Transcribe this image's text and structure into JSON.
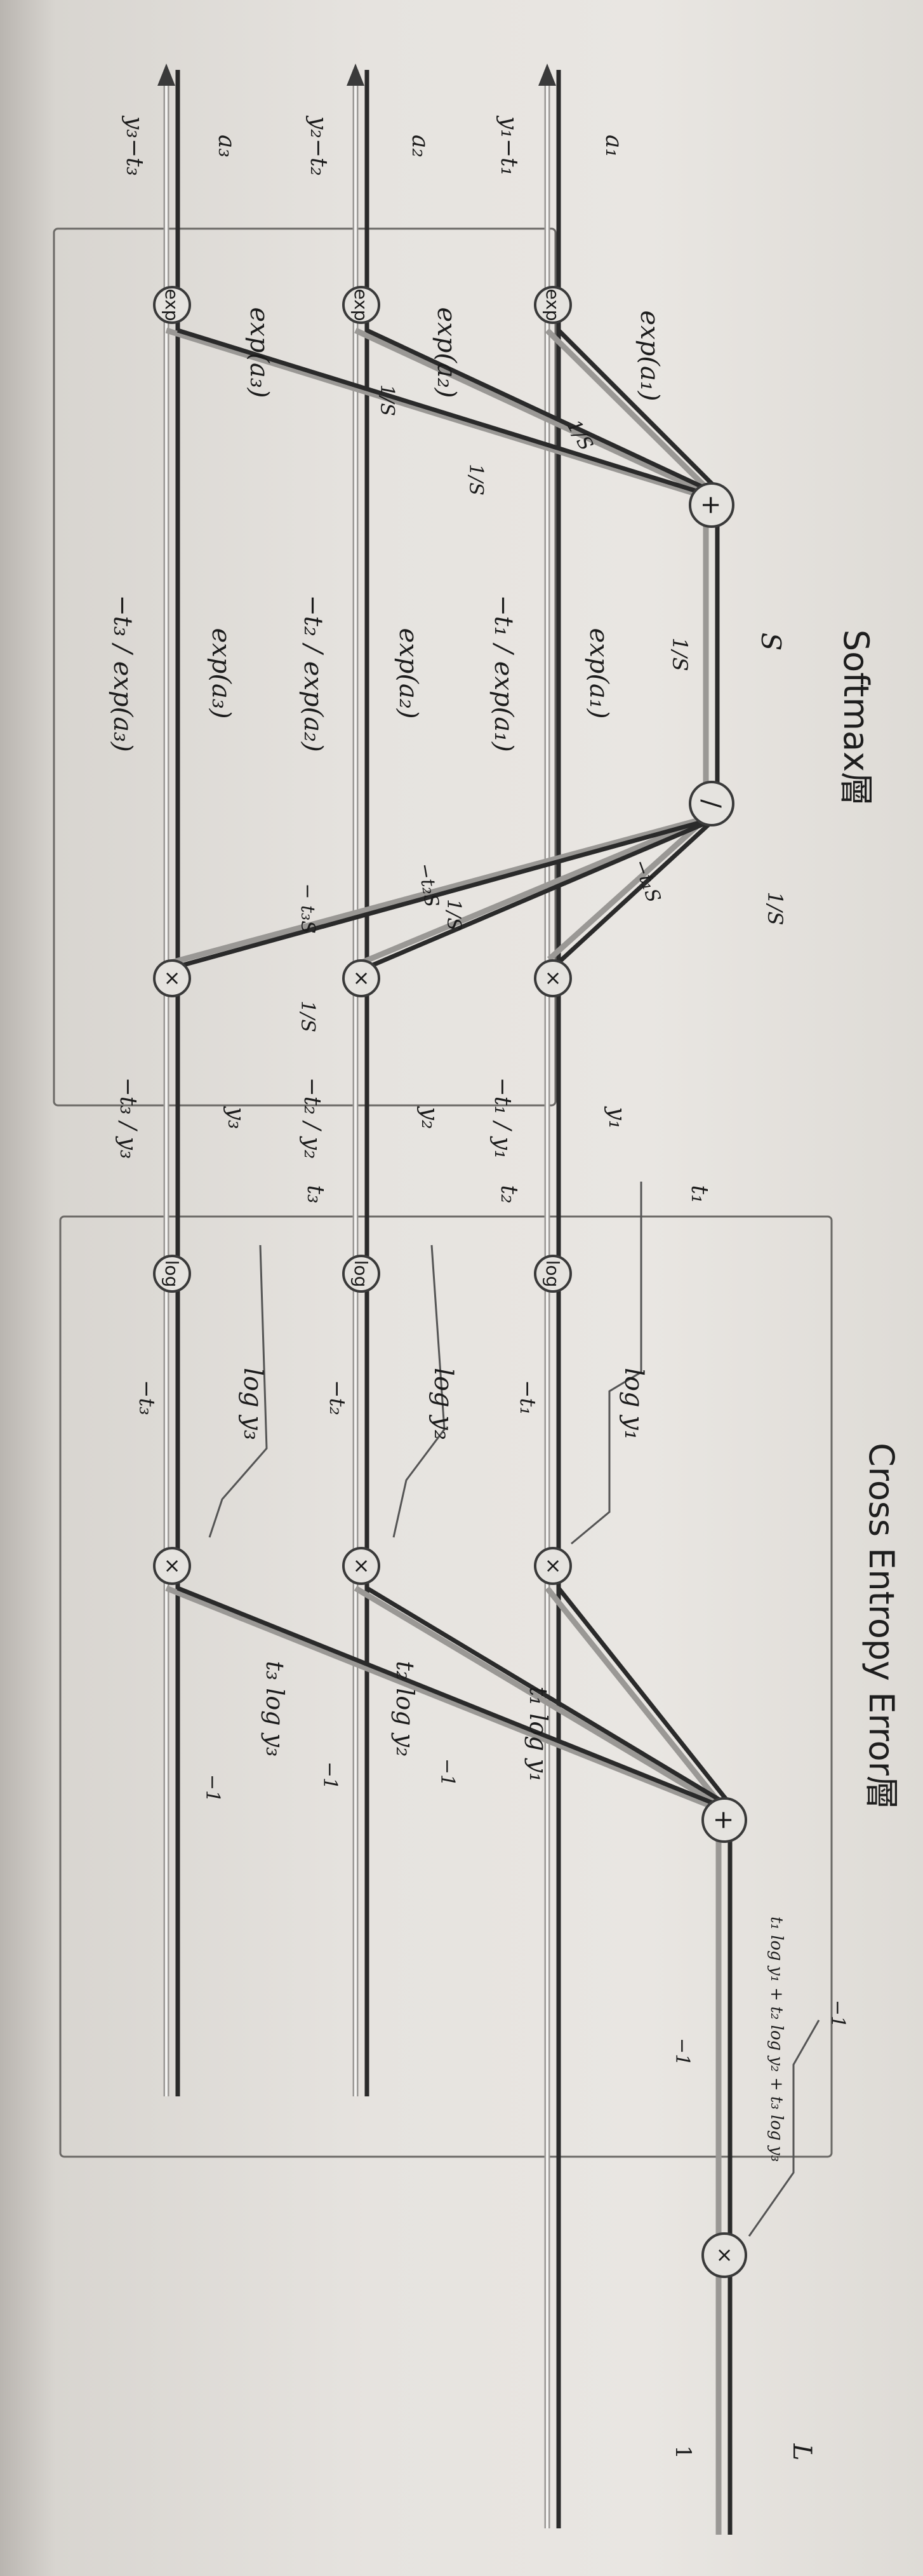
{
  "titles": {
    "softmax": "Softmax層",
    "cross_entropy": "Cross Entropy Error層"
  },
  "nodes": {
    "exp": "exp",
    "plus": "+",
    "divide": "/",
    "times": "×",
    "log": "log"
  },
  "inputs": {
    "a1": "a₁",
    "a2": "a₂",
    "a3": "a₃",
    "y1_t1": "y₁−t₁",
    "y2_t2": "y₂−t₂",
    "y3_t3": "y₃−t₃"
  },
  "softmax_labels": {
    "exp_a1": "exp(a₁)",
    "exp_a2": "exp(a₂)",
    "exp_a3": "exp(a₃)",
    "one_over_S_a": "1/S",
    "one_over_S_b": "1/S",
    "one_over_S_c": "1/S",
    "S": "S",
    "one_over_S_top": "1/S",
    "exp_a1_mid": "exp(a₁)",
    "neg_t1_exp_a1": "−t₁ / exp(a₁)",
    "exp_a2_mid": "exp(a₂)",
    "neg_t2_exp_a2": "−t₂ / exp(a₂)",
    "exp_a3_mid": "exp(a₃)",
    "neg_t3_exp_a3": "−t₃ / exp(a₃)",
    "one_over_S_div": "1/S",
    "neg_t1_S": "−t₁S",
    "neg_t2_S": "−t₂S",
    "neg_t3_S": "− t₃S",
    "one_over_S_d": "1/S",
    "one_over_S_e": "1/S"
  },
  "cross_labels": {
    "y1": "y₁",
    "y2": "y₂",
    "y3": "y₃",
    "neg_t1_y1": "−t₁ / y₁",
    "neg_t2_y2": "−t₂ / y₂",
    "neg_t3_y3": "−t₃ / y₃",
    "t1": "t₁",
    "t2": "t₂",
    "t3": "t₃",
    "log_y1": "log y₁",
    "log_y2": "log y₂",
    "log_y3": "log y₃",
    "neg_t1": "−t₁",
    "neg_t2": "−t₂",
    "neg_t3": "−t₃",
    "t1_log_y1": "t₁ log y₁",
    "t2_log_y2": "t₂ log y₂",
    "t3_log_y3": "t₃ log y₃",
    "minus1_a": "−1",
    "minus1_b": "−1",
    "minus1_c": "−1",
    "sum": "t₁ log y₁ + t₂ log y₂ + t₃ log y₃",
    "minus1_d": "−1",
    "minus1_e": "−1",
    "L": "L",
    "one": "1"
  }
}
